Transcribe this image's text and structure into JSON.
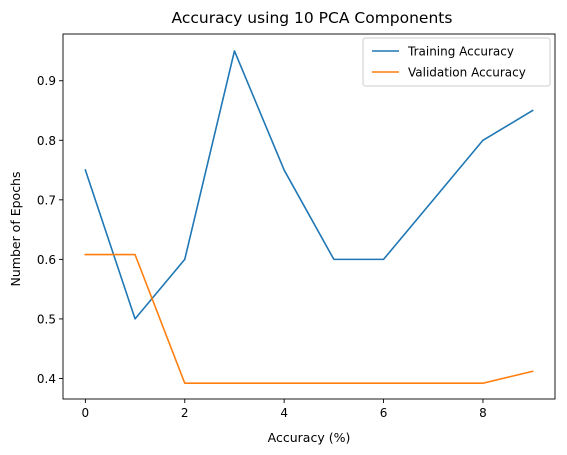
{
  "chart_data": {
    "type": "line",
    "title": "Accuracy using 10 PCA Components",
    "xlabel": "Accuracy (%)",
    "ylabel": "Number of Epochs",
    "x": [
      0,
      1,
      2,
      3,
      4,
      5,
      6,
      7,
      8,
      9
    ],
    "xlim": [
      -0.45,
      9.45
    ],
    "ylim": [
      0.3655,
      0.9785
    ],
    "xticks": [
      0,
      2,
      4,
      6,
      8
    ],
    "yticks": [
      0.4,
      0.5,
      0.6,
      0.7,
      0.8,
      0.9
    ],
    "xtick_labels": [
      "0",
      "2",
      "4",
      "6",
      "8"
    ],
    "ytick_labels": [
      "0.4",
      "0.5",
      "0.6",
      "0.7",
      "0.8",
      "0.9"
    ],
    "grid": false,
    "legend_position": "top-right",
    "series": [
      {
        "name": "Training Accuracy",
        "color": "#1f77b4",
        "values": [
          0.75,
          0.5,
          0.6,
          0.95,
          0.75,
          0.6,
          0.6,
          0.7,
          0.8,
          0.85
        ]
      },
      {
        "name": "Validation Accuracy",
        "color": "#ff7f0e",
        "values": [
          0.608,
          0.608,
          0.392,
          0.392,
          0.392,
          0.392,
          0.392,
          0.392,
          0.392,
          0.412
        ]
      }
    ]
  }
}
